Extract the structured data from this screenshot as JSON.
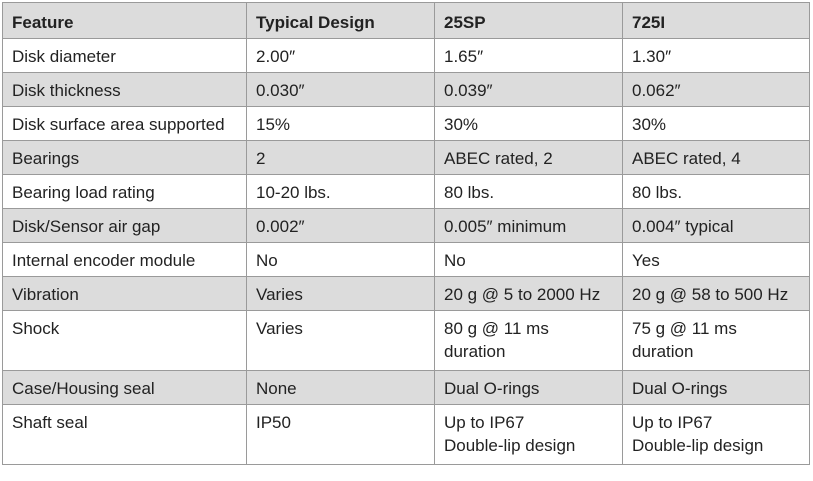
{
  "table": {
    "headers": [
      "Feature",
      "Typical Design",
      "25SP",
      "725I"
    ],
    "rows": [
      {
        "cells": [
          [
            "Disk diameter"
          ],
          [
            "2.00″"
          ],
          [
            "1.65″"
          ],
          [
            "1.30″"
          ]
        ]
      },
      {
        "cells": [
          [
            "Disk thickness"
          ],
          [
            "0.030″"
          ],
          [
            "0.039″"
          ],
          [
            "0.062″"
          ]
        ]
      },
      {
        "cells": [
          [
            "Disk surface area supported"
          ],
          [
            "15%"
          ],
          [
            "30%"
          ],
          [
            "30%"
          ]
        ]
      },
      {
        "cells": [
          [
            "Bearings"
          ],
          [
            "2"
          ],
          [
            "ABEC rated, 2"
          ],
          [
            "ABEC rated, 4"
          ]
        ]
      },
      {
        "cells": [
          [
            "Bearing load rating"
          ],
          [
            "10-20 lbs."
          ],
          [
            "80 lbs."
          ],
          [
            "80 lbs."
          ]
        ]
      },
      {
        "cells": [
          [
            "Disk/Sensor air gap"
          ],
          [
            "0.002″"
          ],
          [
            "0.005″ minimum"
          ],
          [
            "0.004″ typical"
          ]
        ]
      },
      {
        "cells": [
          [
            "Internal encoder module"
          ],
          [
            "No"
          ],
          [
            "No"
          ],
          [
            "Yes"
          ]
        ]
      },
      {
        "cells": [
          [
            "Vibration"
          ],
          [
            "Varies"
          ],
          [
            "20 g @ 5 to 2000 Hz"
          ],
          [
            "20 g @ 58 to 500 Hz"
          ]
        ]
      },
      {
        "cells": [
          [
            "Shock"
          ],
          [
            "Varies"
          ],
          [
            "80 g @ 11 ms",
            "duration"
          ],
          [
            "75 g @ 11 ms",
            "duration"
          ]
        ]
      },
      {
        "cells": [
          [
            "Case/Housing seal"
          ],
          [
            "None"
          ],
          [
            "Dual O-rings"
          ],
          [
            "Dual O-rings"
          ]
        ]
      },
      {
        "cells": [
          [
            "Shaft seal"
          ],
          [
            "IP50"
          ],
          [
            "Up to IP67",
            "Double-lip design"
          ],
          [
            "Up to IP67",
            "Double-lip design"
          ]
        ]
      }
    ]
  },
  "colors": {
    "shaded_row": "#dcdcdc",
    "border": "#9a9a9a",
    "text": "#222222"
  }
}
